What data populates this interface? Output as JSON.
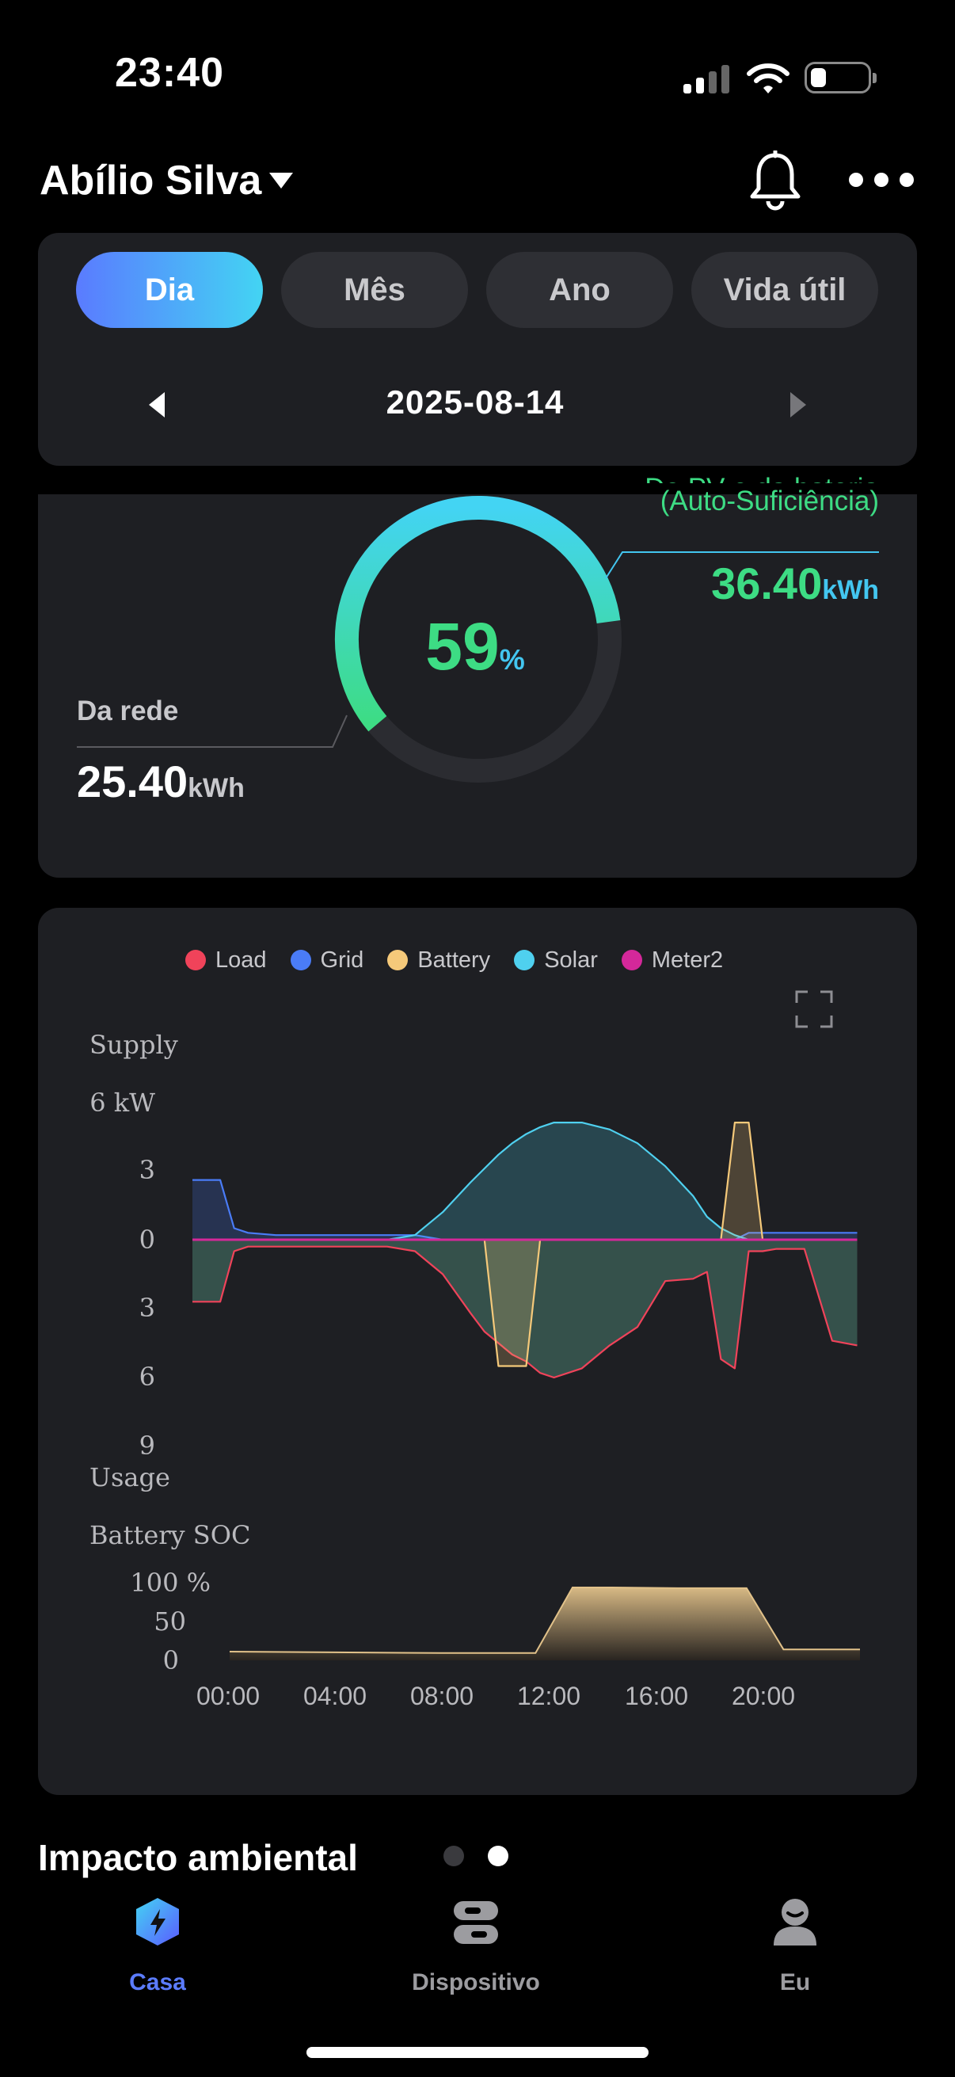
{
  "status_bar": {
    "time": "23:40"
  },
  "header": {
    "user_name": "Abílio Silva"
  },
  "period_tabs": [
    {
      "label": "Dia",
      "active": true
    },
    {
      "label": "Mês",
      "active": false
    },
    {
      "label": "Ano",
      "active": false
    },
    {
      "label": "Vida útil",
      "active": false
    }
  ],
  "date_nav": {
    "date": "2025-08-14"
  },
  "self_sufficiency": {
    "label_line1": "Do PV e da bateria",
    "label_line2": "(Auto-Suficiência)",
    "value": "36.40",
    "unit": "kWh",
    "percent": "59",
    "percent_unit": "%",
    "percent_value": 59,
    "colors": {
      "ring_start": "#43d4f3",
      "ring_end": "#3ddc84",
      "track": "#2b2c31"
    }
  },
  "grid_import": {
    "label": "Da rede",
    "value": "25.40",
    "unit": "kWh"
  },
  "power_chart": {
    "legend": [
      {
        "name": "Load",
        "color": "#f0435a"
      },
      {
        "name": "Grid",
        "color": "#4a7cf7"
      },
      {
        "name": "Battery",
        "color": "#f5c97a"
      },
      {
        "name": "Solar",
        "color": "#4fd0ef"
      },
      {
        "name": "Meter2",
        "color": "#d4289a"
      }
    ],
    "supply_label": "Supply",
    "usage_label": "Usage",
    "y_ticks": [
      "6 kW",
      "3",
      "0",
      "3",
      "6",
      "9"
    ],
    "soc_label": "Battery SOC",
    "soc_ticks": [
      "100 %",
      "50",
      "0"
    ],
    "x_ticks": [
      "00:00",
      "04:00",
      "08:00",
      "12:00",
      "16:00",
      "20:00"
    ]
  },
  "chart_data": {
    "type": "area",
    "x_unit": "hour",
    "ylabel_top": "Supply",
    "ylabel_bottom": "Usage",
    "y_ticks_supply": [
      6,
      3,
      0
    ],
    "y_ticks_usage": [
      3,
      6,
      9
    ],
    "x": [
      0,
      0.5,
      1,
      1.5,
      2,
      3,
      4,
      5,
      6,
      7,
      8,
      9,
      10,
      10.5,
      11,
      11.5,
      12,
      12.5,
      13,
      14,
      15,
      16,
      17,
      18,
      18.5,
      19,
      19.5,
      20,
      20.5,
      21,
      22,
      23,
      23.9
    ],
    "series": [
      {
        "name": "Solar",
        "values": [
          0,
          0,
          0,
          0,
          0,
          0,
          0,
          0,
          0,
          0,
          0.2,
          1.2,
          2.5,
          3.1,
          3.7,
          4.2,
          4.6,
          4.9,
          5.1,
          5.1,
          4.8,
          4.2,
          3.2,
          1.9,
          1.0,
          0.5,
          0.2,
          0,
          0,
          0,
          0,
          0,
          0
        ]
      },
      {
        "name": "Grid",
        "values": [
          2.6,
          2.6,
          2.6,
          0.5,
          0.3,
          0.2,
          0.2,
          0.2,
          0.2,
          0.2,
          0.2,
          0,
          0,
          0,
          0,
          0,
          0,
          0,
          0,
          0,
          0,
          0,
          0,
          0,
          0,
          0,
          0,
          0.3,
          0.3,
          0.3,
          0.3,
          0.3,
          0.3
        ]
      },
      {
        "name": "Battery",
        "values": [
          0,
          0,
          0,
          0,
          0,
          0,
          0,
          0,
          0,
          0,
          0,
          0,
          0,
          0,
          -5.5,
          -5.5,
          -5.5,
          0,
          0,
          0,
          0,
          0,
          0,
          0,
          0,
          0,
          5.1,
          5.1,
          0,
          0,
          0,
          0,
          0
        ]
      },
      {
        "name": "Load",
        "values": [
          -2.7,
          -2.7,
          -2.7,
          -0.5,
          -0.3,
          -0.3,
          -0.3,
          -0.3,
          -0.3,
          -0.3,
          -0.5,
          -1.5,
          -3.2,
          -4.0,
          -4.5,
          -5.0,
          -5.3,
          -5.8,
          -6.0,
          -5.6,
          -4.6,
          -3.8,
          -1.8,
          -1.7,
          -1.4,
          -5.2,
          -5.6,
          -0.5,
          -0.5,
          -0.4,
          -0.4,
          -4.4,
          -4.6
        ]
      },
      {
        "name": "Meter2",
        "values": [
          0,
          0,
          0,
          0,
          0,
          0,
          0,
          0,
          0,
          0,
          0,
          0,
          0,
          0,
          0,
          0,
          0,
          0,
          0,
          0,
          0,
          0,
          0,
          0,
          0,
          0,
          0,
          0,
          0,
          0,
          0,
          0,
          0
        ]
      }
    ],
    "soc": {
      "ylabel": "Battery SOC",
      "ylim": [
        0,
        100
      ],
      "x": [
        0,
        4,
        8,
        10,
        11.6,
        13,
        14.5,
        17,
        19.6,
        21,
        22,
        23.9
      ],
      "values": [
        12,
        11,
        10,
        10,
        10,
        100,
        100,
        99,
        99,
        15,
        15,
        15
      ]
    }
  }
}
